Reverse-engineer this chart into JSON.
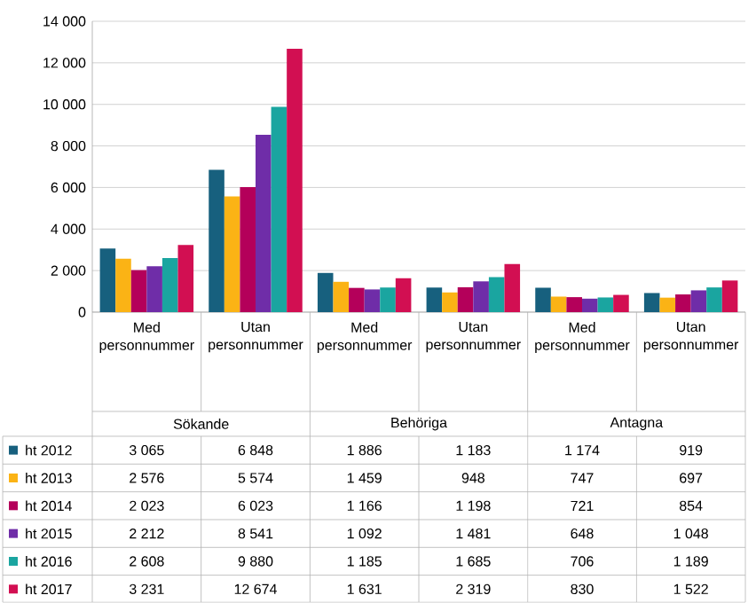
{
  "chart_data": {
    "type": "bar",
    "categories": [
      "Med personnummer",
      "Utan personnummer",
      "Med personnummer",
      "Utan personnummer",
      "Med personnummer",
      "Utan personnummer"
    ],
    "series": [
      {
        "name": "ht 2012",
        "color": "#17607e",
        "values": [
          3065,
          6848,
          1886,
          1183,
          1174,
          919
        ],
        "value_labels": [
          "3 065",
          "6 848",
          "1 886",
          "1 183",
          "1 174",
          "919"
        ]
      },
      {
        "name": "ht 2013",
        "color": "#fbb315",
        "values": [
          2576,
          5574,
          1459,
          948,
          747,
          697
        ],
        "value_labels": [
          "2 576",
          "5 574",
          "1 459",
          "948",
          "747",
          "697"
        ]
      },
      {
        "name": "ht 2014",
        "color": "#b4005a",
        "values": [
          2023,
          6023,
          1166,
          1198,
          721,
          854
        ],
        "value_labels": [
          "2 023",
          "6 023",
          "1 166",
          "1 198",
          "721",
          "854"
        ]
      },
      {
        "name": "ht 2015",
        "color": "#6f2da8",
        "values": [
          2212,
          8541,
          1092,
          1481,
          648,
          1048
        ],
        "value_labels": [
          "2 212",
          "8 541",
          "1 092",
          "1 481",
          "648",
          "1 048"
        ]
      },
      {
        "name": "ht 2016",
        "color": "#1aa5a0",
        "values": [
          2608,
          9880,
          1185,
          1685,
          706,
          1189
        ],
        "value_labels": [
          "2 608",
          "9 880",
          "1 185",
          "1 685",
          "706",
          "1 189"
        ]
      },
      {
        "name": "ht 2017",
        "color": "#d20f52",
        "values": [
          3231,
          12674,
          1631,
          2319,
          830,
          1522
        ],
        "value_labels": [
          "3 231",
          "12 674",
          "1 631",
          "2 319",
          "830",
          "1 522"
        ]
      }
    ],
    "annotations": [
      "Sökande",
      "Behöriga",
      "Antagna"
    ],
    "ylim": [
      0,
      14000
    ],
    "yticks": [
      0,
      {
        "value": 2000,
        "label": "2 000"
      },
      {
        "value": 4000,
        "label": "4 000"
      },
      {
        "value": 6000,
        "label": "6 000"
      },
      {
        "value": 8000,
        "label": "8 000"
      },
      {
        "value": 10000,
        "label": "10 000"
      },
      {
        "value": 12000,
        "label": "12 000"
      },
      {
        "value": 14000,
        "label": "14 000"
      }
    ],
    "grid": "y",
    "legend": "bottom left"
  }
}
